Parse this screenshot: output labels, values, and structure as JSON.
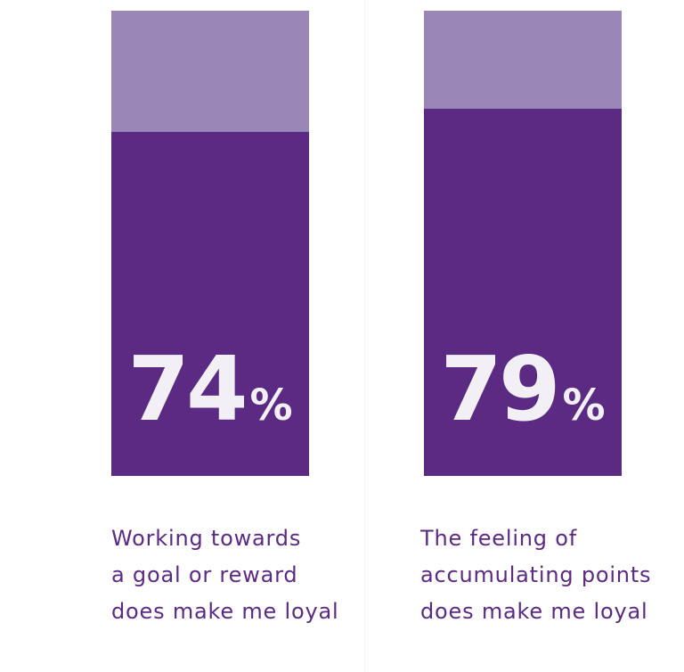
{
  "colors": {
    "fill": "#5b2a82",
    "track": "#9b86b8",
    "label_text": "#f2f0f5",
    "caption_text": "#5b2a82"
  },
  "chart_data": {
    "type": "bar",
    "unit": "%",
    "ylim": [
      0,
      100
    ],
    "categories": [
      "Working towards a goal or reward does make me loyal",
      "The feeling of accumulating points does make me loyal"
    ],
    "values": [
      74,
      79
    ],
    "bars": [
      {
        "value": 74,
        "value_label": "74",
        "percent_sign": "%",
        "caption_lines": [
          "Working towards",
          "a goal or reward",
          "does make me loyal"
        ]
      },
      {
        "value": 79,
        "value_label": "79",
        "percent_sign": "%",
        "caption_lines": [
          "The feeling of",
          "accumulating points",
          "does make me loyal"
        ]
      }
    ]
  }
}
